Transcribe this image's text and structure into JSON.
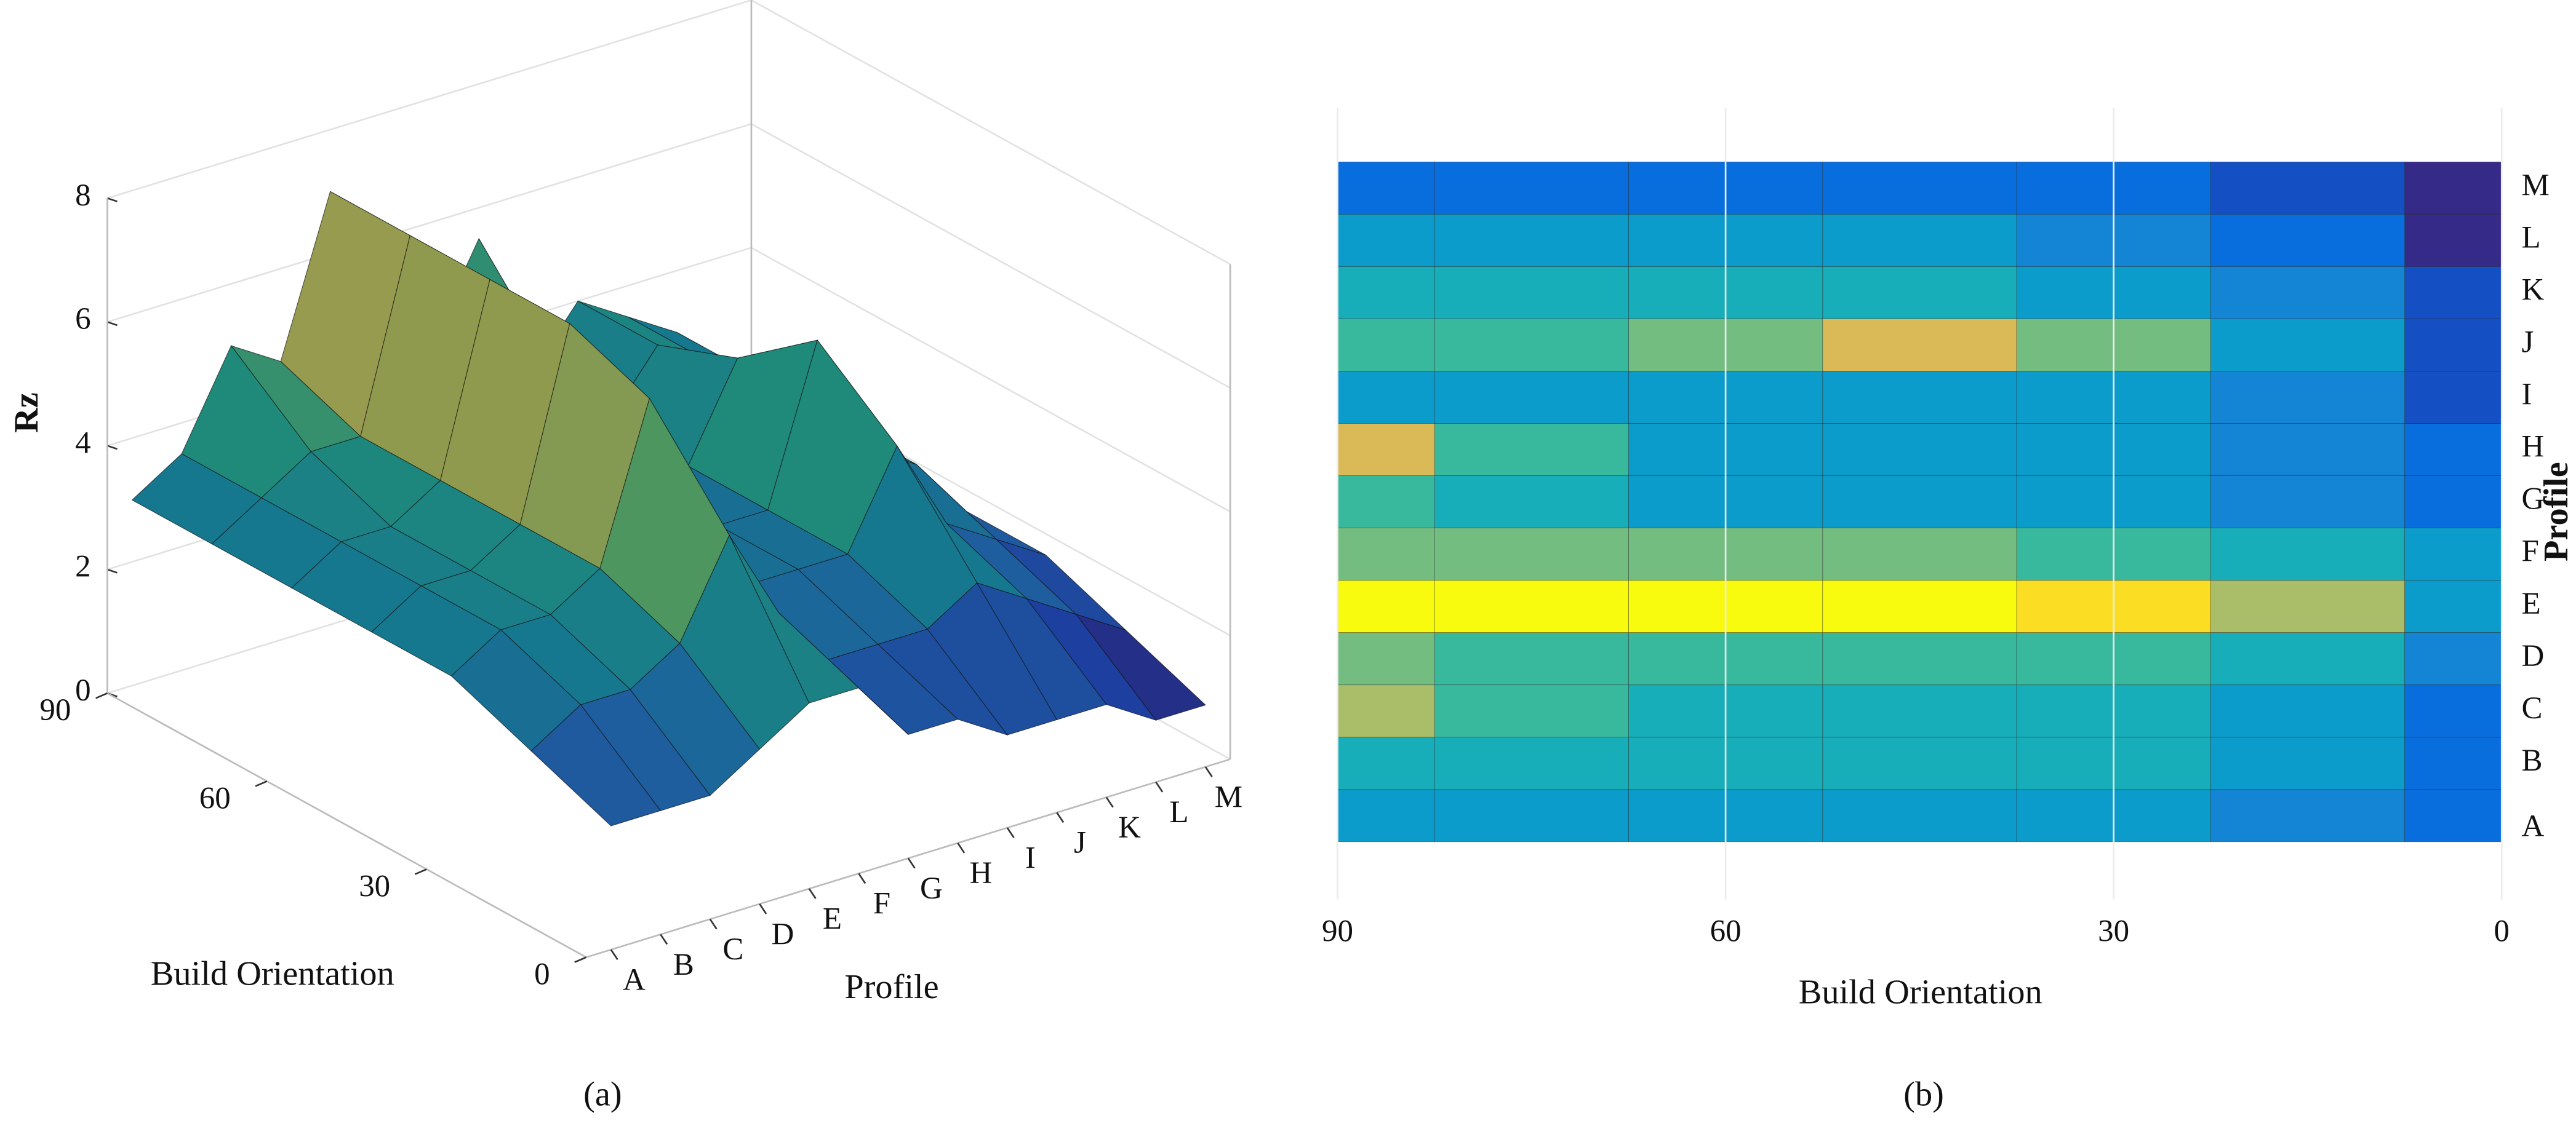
{
  "chart_data": [
    {
      "type": "surface",
      "panel_label": "(a)",
      "x_label": "Build Orientation",
      "y_label": "Profile",
      "z_label": "Rz",
      "x": [
        0,
        15,
        30,
        45,
        60,
        75,
        90
      ],
      "xlim": [
        0,
        90
      ],
      "xticks": [
        0,
        30,
        60,
        90
      ],
      "categories": [
        "A",
        "B",
        "C",
        "D",
        "E",
        "F",
        "G",
        "H",
        "I",
        "J",
        "K",
        "L",
        "M"
      ],
      "z": [
        [
          2.0,
          2.5,
          3.0,
          3.0,
          3.0,
          3.0,
          3.0
        ],
        [
          2.0,
          3.0,
          3.5,
          3.5,
          3.5,
          3.5,
          3.5
        ],
        [
          2.0,
          3.0,
          3.5,
          3.5,
          3.5,
          4.0,
          5.0
        ],
        [
          2.5,
          3.5,
          4.0,
          4.0,
          4.0,
          4.0,
          4.5
        ],
        [
          3.0,
          5.0,
          6.5,
          7.0,
          7.0,
          7.0,
          7.0
        ],
        [
          3.0,
          3.5,
          4.0,
          4.5,
          4.5,
          4.5,
          4.5
        ],
        [
          2.0,
          2.5,
          3.0,
          3.0,
          3.0,
          3.5,
          4.0
        ],
        [
          2.0,
          2.5,
          3.0,
          3.0,
          3.0,
          4.0,
          5.5
        ],
        [
          1.5,
          2.5,
          3.0,
          3.0,
          3.0,
          3.0,
          3.0
        ],
        [
          1.5,
          3.0,
          4.5,
          5.5,
          4.5,
          4.0,
          4.0
        ],
        [
          1.5,
          2.5,
          3.0,
          3.5,
          3.5,
          3.5,
          3.5
        ],
        [
          1.0,
          2.0,
          2.5,
          3.0,
          3.0,
          3.0,
          3.0
        ],
        [
          1.0,
          1.5,
          2.0,
          2.0,
          2.0,
          2.0,
          2.0
        ]
      ],
      "zlim": [
        0,
        8
      ],
      "zticks": [
        0,
        2,
        4,
        6,
        8
      ],
      "colormap": [
        "#2a1f6e",
        "#1d3fa0",
        "#1f5e9e",
        "#16788e",
        "#1f8a7a",
        "#4e9660",
        "#8f9a4e",
        "#c0a052",
        "#d8b060"
      ],
      "clim": [
        1,
        7
      ]
    },
    {
      "type": "heatmap",
      "panel_label": "(b)",
      "x_label": "Build Orientation",
      "y_label": "Profile",
      "x": [
        0,
        15,
        30,
        45,
        60,
        75,
        90
      ],
      "xlim": [
        90,
        0
      ],
      "xticks": [
        90,
        60,
        30,
        0
      ],
      "categories": [
        "A",
        "B",
        "C",
        "D",
        "E",
        "F",
        "G",
        "H",
        "I",
        "J",
        "K",
        "L",
        "M"
      ],
      "z": [
        [
          2.0,
          2.5,
          3.0,
          3.0,
          3.0,
          3.0,
          3.0
        ],
        [
          2.0,
          3.0,
          3.5,
          3.5,
          3.5,
          3.5,
          3.5
        ],
        [
          2.0,
          3.0,
          3.5,
          3.5,
          3.5,
          4.0,
          5.0
        ],
        [
          2.5,
          3.5,
          4.0,
          4.0,
          4.0,
          4.0,
          4.5
        ],
        [
          3.0,
          5.0,
          6.5,
          7.0,
          7.0,
          7.0,
          7.0
        ],
        [
          3.0,
          3.5,
          4.0,
          4.5,
          4.5,
          4.5,
          4.5
        ],
        [
          2.0,
          2.5,
          3.0,
          3.0,
          3.0,
          3.5,
          4.0
        ],
        [
          2.0,
          2.5,
          3.0,
          3.0,
          3.0,
          4.0,
          5.5
        ],
        [
          1.5,
          2.5,
          3.0,
          3.0,
          3.0,
          3.0,
          3.0
        ],
        [
          1.5,
          3.0,
          4.5,
          5.5,
          4.5,
          4.0,
          4.0
        ],
        [
          1.5,
          2.5,
          3.0,
          3.5,
          3.5,
          3.5,
          3.5
        ],
        [
          1.0,
          2.0,
          2.5,
          3.0,
          3.0,
          3.0,
          3.0
        ],
        [
          1.0,
          1.5,
          2.0,
          2.0,
          2.0,
          2.0,
          2.0
        ]
      ],
      "colormap": [
        "#352a87",
        "#0363e1",
        "#1485d4",
        "#06a7c6",
        "#38b99e",
        "#92bf73",
        "#d9ba56",
        "#fcce2e",
        "#f9fb0e"
      ],
      "clim": [
        1,
        7
      ]
    }
  ]
}
